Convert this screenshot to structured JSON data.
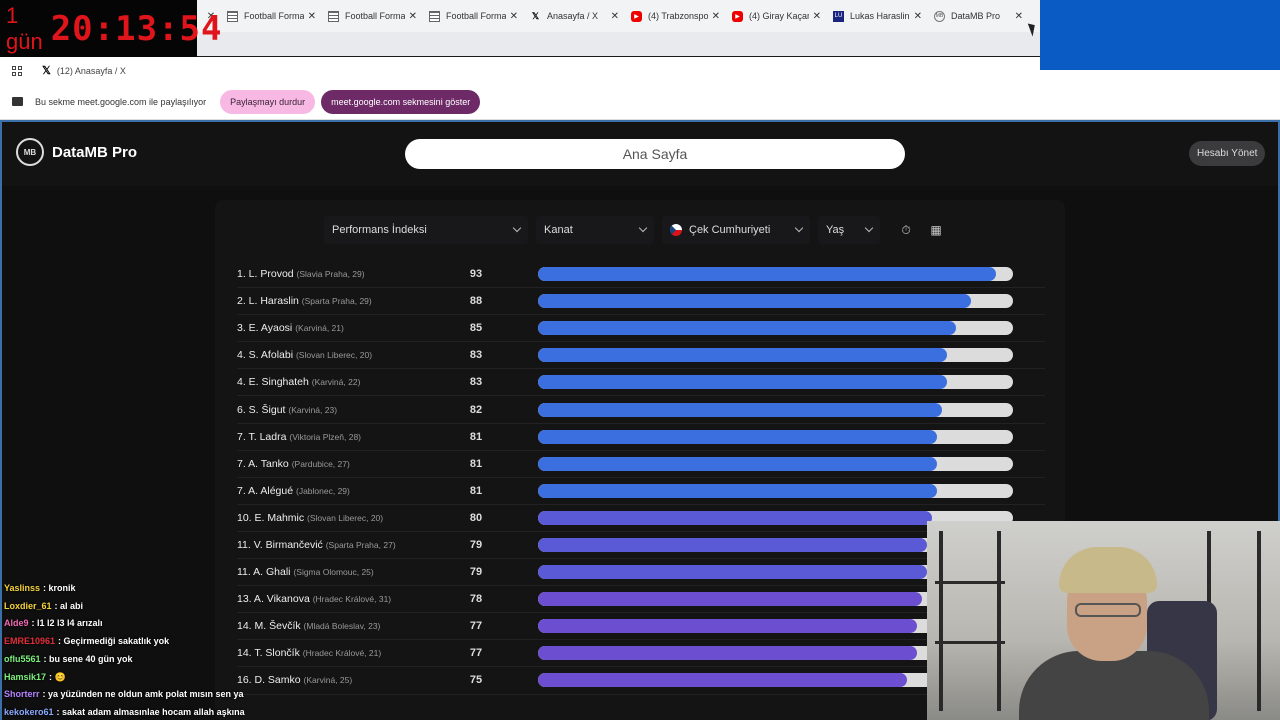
{
  "timer": {
    "days": "1 gün",
    "clock": "20:13:54"
  },
  "browser": {
    "tabs": [
      {
        "title": "",
        "icon": "tab-partial"
      },
      {
        "title": "Football Forma",
        "icon": "sheet-icon"
      },
      {
        "title": "Football Forma",
        "icon": "sheet-icon"
      },
      {
        "title": "Football Forma",
        "icon": "sheet-icon"
      },
      {
        "title": "Anasayfa / X",
        "icon": "x-logo-icon"
      },
      {
        "title": "(4) Trabzonspo",
        "icon": "youtube-icon"
      },
      {
        "title": "(4) Giray Kaçar",
        "icon": "youtube-icon"
      },
      {
        "title": "Lukas Haraslin",
        "icon": "extension-icon"
      },
      {
        "title": "DataMB Pro",
        "icon": "datamb-icon"
      }
    ],
    "active_tab_title": "(12) Anasayfa / X",
    "share_bar": {
      "text": "Bu sekme meet.google.com ile paylaşılıyor",
      "stop_label": "Paylaşmayı durdur",
      "show_label": "meet.google.com sekmesini göster"
    }
  },
  "app": {
    "brand": "DataMB Pro",
    "logo_text": "MB",
    "search_value": "Ana Sayfa",
    "manage_label": "Hesabı Yönet",
    "filters": {
      "metric": "Performans İndeksi",
      "position": "Kanat",
      "country": "Çek Cumhuriyeti",
      "age": "Yaş"
    },
    "accent_colors": {
      "blue": "#3b6fe0",
      "indigo": "#5a5ad6",
      "purple": "#6b4fd0"
    },
    "players": [
      {
        "name": "1. L. Provod",
        "club": "(Slavia Praha, 29)",
        "score": "93",
        "value": 93
      },
      {
        "name": "2. L. Haraslin",
        "club": "(Sparta Praha, 29)",
        "score": "88",
        "value": 88
      },
      {
        "name": "3. E. Ayaosi",
        "club": "(Karviná, 21)",
        "score": "85",
        "value": 85
      },
      {
        "name": "4. S. Afolabi",
        "club": "(Slovan Liberec, 20)",
        "score": "83",
        "value": 83
      },
      {
        "name": "4. E. Singhateh",
        "club": "(Karviná, 22)",
        "score": "83",
        "value": 83
      },
      {
        "name": "6. S. Šigut",
        "club": "(Karviná, 23)",
        "score": "82",
        "value": 82
      },
      {
        "name": "7. T. Ladra",
        "club": "(Viktoria Plzeň, 28)",
        "score": "81",
        "value": 81
      },
      {
        "name": "7. A. Tanko",
        "club": "(Pardubice, 27)",
        "score": "81",
        "value": 81
      },
      {
        "name": "7. A. Alégué",
        "club": "(Jablonec, 29)",
        "score": "81",
        "value": 81
      },
      {
        "name": "10. E. Mahmic",
        "club": "(Slovan Liberec, 20)",
        "score": "80",
        "value": 80
      },
      {
        "name": "11. V. Birmančević",
        "club": "(Sparta Praha, 27)",
        "score": "79",
        "value": 79
      },
      {
        "name": "11. A. Ghali",
        "club": "(Sigma Olomouc, 25)",
        "score": "79",
        "value": 79
      },
      {
        "name": "13. A. Vikanova",
        "club": "(Hradec Králové, 31)",
        "score": "78",
        "value": 78
      },
      {
        "name": "14. M. Ševčík",
        "club": "(Mladá Boleslav, 23)",
        "score": "77",
        "value": 77
      },
      {
        "name": "14. T. Slončík",
        "club": "(Hradec Králové, 21)",
        "score": "77",
        "value": 77
      },
      {
        "name": "16. D. Samko",
        "club": "(Karviná, 25)",
        "score": "75",
        "value": 75
      }
    ]
  },
  "chat": [
    {
      "user": "Yaslinss",
      "color": "#f5d33a",
      "msg": ": kronik"
    },
    {
      "user": "Loxdier_61",
      "color": "#f5d33a",
      "msg": ": al abi"
    },
    {
      "user": "Alde9",
      "color": "#f06ab0",
      "msg": ": l1 l2 l3 l4 arızalı"
    },
    {
      "user": "EMRE10961",
      "color": "#e0303a",
      "msg": ": Geçirmediği sakatlık yok"
    },
    {
      "user": "oflu5561",
      "color": "#7cf07c",
      "msg": ": bu sene 40 gün yok"
    },
    {
      "user": "Hamsik17",
      "color": "#7cf07c",
      "msg": ": 😊"
    },
    {
      "user": "Shorterr",
      "color": "#b482ff",
      "msg": ": ya yüzünden ne oldun amk polat mısın sen ya"
    },
    {
      "user": "kekokero61",
      "color": "#8aa8ff",
      "msg": ": sakat adam almasınlae hocam allah aşkına"
    }
  ]
}
